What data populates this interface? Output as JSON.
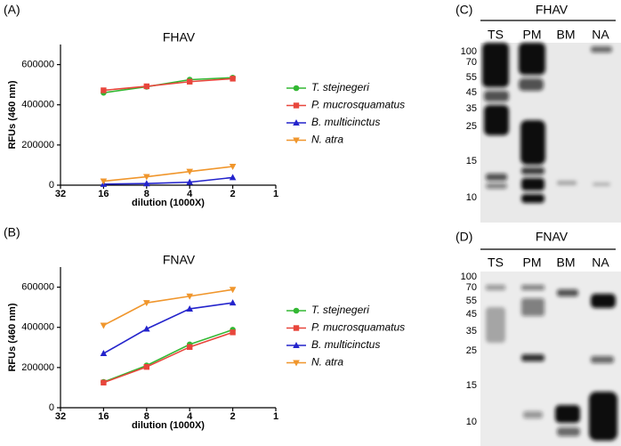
{
  "chart_data": [
    {
      "type": "line",
      "panel": "(A)",
      "title": "FHAV",
      "x_label": "dilution (1000X)",
      "y_label": "RFUs (460 nm)",
      "x": [
        16,
        8,
        4,
        2
      ],
      "xlim": [
        32,
        1
      ],
      "xticks": [
        32,
        16,
        8,
        4,
        2,
        1
      ],
      "x_log_base": 2,
      "ylim": [
        0,
        700000
      ],
      "yticks": [
        0,
        200000,
        400000,
        600000
      ],
      "grid": false,
      "legend": "right",
      "series": [
        {
          "name": "T. stejnegeri",
          "color": "#33b833",
          "marker": "circle",
          "values": [
            460000,
            490000,
            525000,
            535000
          ]
        },
        {
          "name": "P. mucrosquamatus",
          "color": "#e8463c",
          "marker": "square",
          "values": [
            472000,
            492000,
            515000,
            530000
          ]
        },
        {
          "name": "B. multicinctus",
          "color": "#2424cc",
          "marker": "triangle-up",
          "values": [
            5000,
            8000,
            15000,
            38000
          ]
        },
        {
          "name": "N. atra",
          "color": "#f0962c",
          "marker": "triangle-down",
          "values": [
            20000,
            42000,
            68000,
            93000
          ]
        }
      ]
    },
    {
      "type": "line",
      "panel": "(B)",
      "title": "FNAV",
      "x_label": "dilution (1000X)",
      "y_label": "RFUs (460 nm)",
      "x": [
        16,
        8,
        4,
        2
      ],
      "xlim": [
        32,
        1
      ],
      "xticks": [
        32,
        16,
        8,
        4,
        2,
        1
      ],
      "x_log_base": 2,
      "ylim": [
        0,
        700000
      ],
      "yticks": [
        0,
        200000,
        400000,
        600000
      ],
      "grid": false,
      "legend": "right",
      "series": [
        {
          "name": "T. stejnegeri",
          "color": "#33b833",
          "marker": "circle",
          "values": [
            128000,
            210000,
            315000,
            388000
          ]
        },
        {
          "name": "P. mucrosquamatus",
          "color": "#e8463c",
          "marker": "square",
          "values": [
            125000,
            203000,
            302000,
            375000
          ]
        },
        {
          "name": "B. multicinctus",
          "color": "#2424cc",
          "marker": "triangle-up",
          "values": [
            270000,
            392000,
            492000,
            522000
          ]
        },
        {
          "name": "N. atra",
          "color": "#f0962c",
          "marker": "triangle-down",
          "values": [
            410000,
            522000,
            555000,
            588000
          ]
        }
      ]
    }
  ],
  "blots": [
    {
      "panel": "(C)",
      "title": "FHAV",
      "lanes": [
        "TS",
        "PM",
        "BM",
        "NA"
      ],
      "markers": [
        "100",
        "70",
        "55",
        "45",
        "35",
        "25",
        "15",
        "10"
      ]
    },
    {
      "panel": "(D)",
      "title": "FNAV",
      "lanes": [
        "TS",
        "PM",
        "BM",
        "NA"
      ],
      "markers": [
        "100",
        "70",
        "55",
        "45",
        "35",
        "25",
        "15",
        "10"
      ]
    }
  ]
}
